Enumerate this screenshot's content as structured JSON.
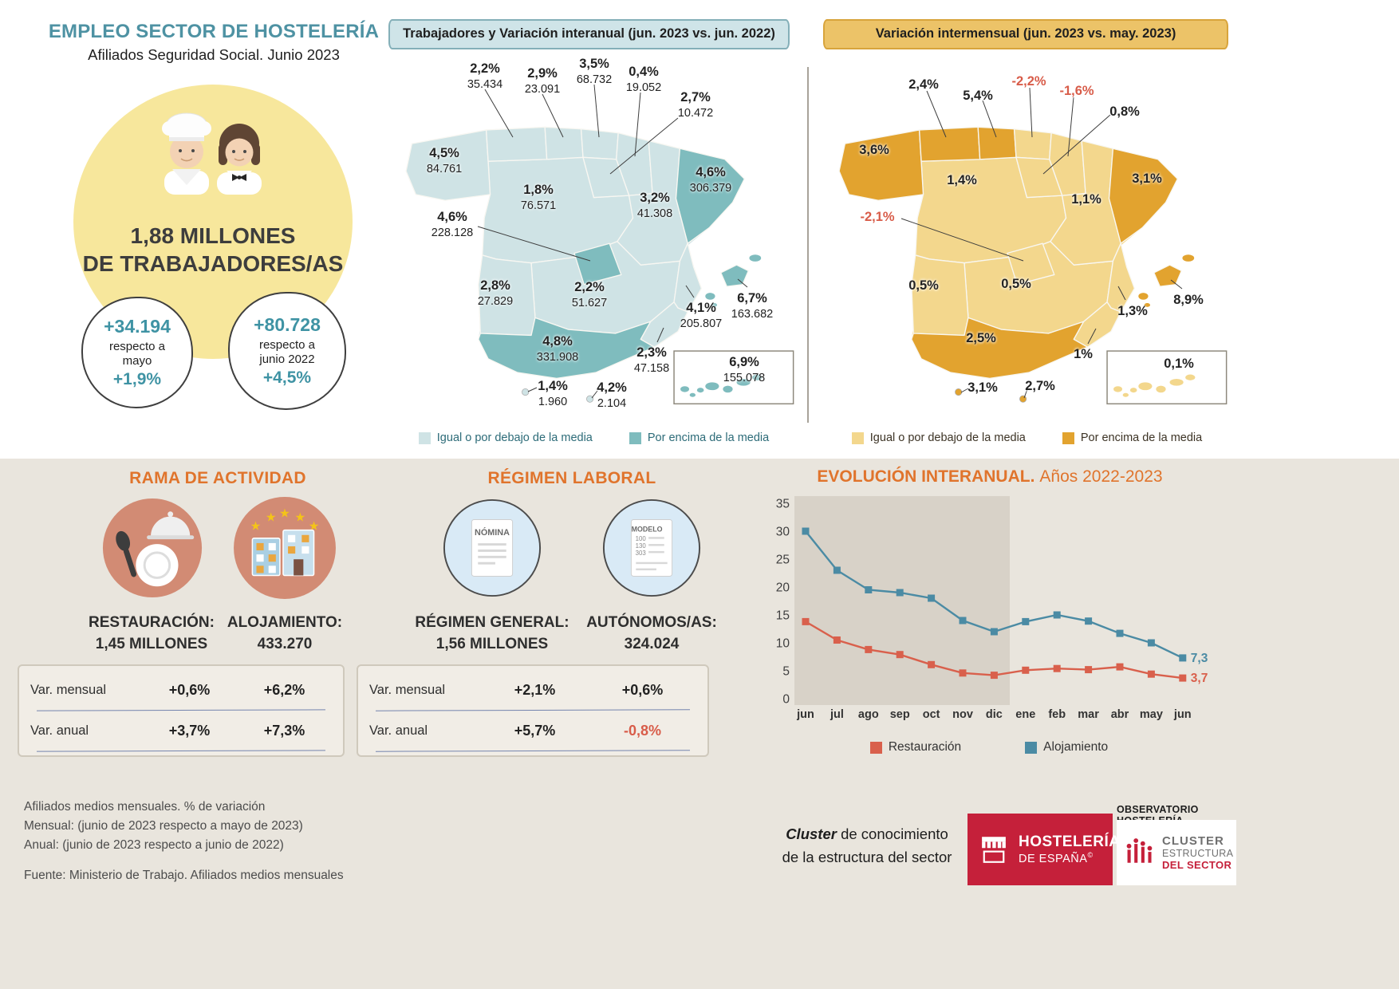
{
  "header": {
    "title": "EMPLEO SECTOR DE HOSTELERÍA",
    "subtitle": "Afiliados Seguridad Social. Junio 2023",
    "total_line1": "1,88 MILLONES",
    "total_line2": "DE TRABAJADORES/AS",
    "badge_month": {
      "value": "+34.194",
      "label_line1": "respecto a",
      "label_line2": "mayo",
      "pct": "+1,9%"
    },
    "badge_year": {
      "value": "+80.728",
      "label_line1": "respecto a",
      "label_line2": "junio 2022",
      "pct": "+4,5%"
    }
  },
  "chart_data": [
    {
      "type": "line",
      "title": "EVOLUCIÓN INTERANUAL.",
      "subtitle": "Años 2022-2023",
      "categories": [
        "jun",
        "jul",
        "ago",
        "sep",
        "oct",
        "nov",
        "dic",
        "ene",
        "feb",
        "mar",
        "abr",
        "may",
        "jun"
      ],
      "series": [
        {
          "name": "Restauración",
          "color": "#d9604c",
          "values": [
            13.8,
            10.5,
            8.8,
            7.9,
            6.1,
            4.6,
            4.2,
            5.1,
            5.4,
            5.2,
            5.7,
            4.4,
            3.7
          ],
          "end_label": "3,7"
        },
        {
          "name": "Alojamiento",
          "color": "#4b8ba4",
          "values": [
            30,
            23,
            19.5,
            19,
            18,
            14,
            12,
            13.8,
            15,
            13.9,
            11.7,
            10,
            7.3
          ],
          "end_label": "7,3"
        }
      ],
      "ylim": [
        0,
        35
      ],
      "yticks": [
        0,
        5,
        10,
        15,
        20,
        25,
        30,
        35
      ],
      "shaded_categories": [
        "jun",
        "dic"
      ],
      "legend_position": "bottom",
      "grid": false,
      "marker": "square"
    },
    {
      "type": "choropleth",
      "title": "Trabajadores y Variación interanual (jun. 2023 vs. jun. 2022)",
      "value_format": "percent_and_count",
      "palette": {
        "below": "#cfe3e5",
        "above": "#7fbcbe"
      },
      "legend": [
        {
          "label": "Igual o por debajo de la media",
          "key": "below"
        },
        {
          "label": "Por encima de la media",
          "key": "above"
        }
      ],
      "regions": [
        {
          "id": "galicia",
          "pct": "4,5%",
          "count": "84.761",
          "above": false
        },
        {
          "id": "asturias",
          "pct": "2,2%",
          "count": "35.434",
          "above": false
        },
        {
          "id": "cantabria",
          "pct": "2,9%",
          "count": "23.091",
          "above": false
        },
        {
          "id": "paisvasco",
          "pct": "3,5%",
          "count": "68.732",
          "above": false
        },
        {
          "id": "navarra",
          "pct": "0,4%",
          "count": "19.052",
          "above": false
        },
        {
          "id": "larioja",
          "pct": "2,7%",
          "count": "10.472",
          "above": false
        },
        {
          "id": "castillayleon",
          "pct": "1,8%",
          "count": "76.571",
          "above": false
        },
        {
          "id": "aragon",
          "pct": "3,2%",
          "count": "41.308",
          "above": false
        },
        {
          "id": "cataluna",
          "pct": "4,6%",
          "count": "306.379",
          "above": true
        },
        {
          "id": "madrid",
          "pct": "4,6%",
          "count": "228.128",
          "above": true
        },
        {
          "id": "extremadura",
          "pct": "2,8%",
          "count": "27.829",
          "above": false
        },
        {
          "id": "castillalamancha",
          "pct": "2,2%",
          "count": "51.627",
          "above": false
        },
        {
          "id": "valencia",
          "pct": "4,1%",
          "count": "205.807",
          "above": false
        },
        {
          "id": "murcia",
          "pct": "2,3%",
          "count": "47.158",
          "above": false
        },
        {
          "id": "andalucia",
          "pct": "4,8%",
          "count": "331.908",
          "above": true
        },
        {
          "id": "baleares",
          "pct": "6,7%",
          "count": "163.682",
          "above": true
        },
        {
          "id": "canarias",
          "pct": "6,9%",
          "count": "155.078",
          "above": true
        },
        {
          "id": "ceuta",
          "pct": "1,4%",
          "count": "1.960",
          "above": false
        },
        {
          "id": "melilla",
          "pct": "4,2%",
          "count": "2.104",
          "above": false
        }
      ]
    },
    {
      "type": "choropleth",
      "title": "Variación intermensual (jun. 2023 vs. may. 2023)",
      "value_format": "percent",
      "palette": {
        "below": "#f3d78d",
        "above": "#e2a32f"
      },
      "negative_color": "#d85c49",
      "legend": [
        {
          "label": "Igual o por debajo de la media",
          "key": "below"
        },
        {
          "label": "Por encima de la media",
          "key": "above"
        }
      ],
      "regions": [
        {
          "id": "galicia",
          "pct": "3,6%",
          "above": true
        },
        {
          "id": "asturias",
          "pct": "2,4%",
          "above": true
        },
        {
          "id": "cantabria",
          "pct": "5,4%",
          "above": true
        },
        {
          "id": "paisvasco",
          "pct": "-2,2%",
          "above": false,
          "negative": true
        },
        {
          "id": "navarra",
          "pct": "-1,6%",
          "above": false,
          "negative": true
        },
        {
          "id": "larioja",
          "pct": "0,8%",
          "above": false
        },
        {
          "id": "castillayleon",
          "pct": "1,4%",
          "above": false
        },
        {
          "id": "aragon",
          "pct": "1,1%",
          "above": false
        },
        {
          "id": "cataluna",
          "pct": "3,1%",
          "above": true
        },
        {
          "id": "madrid",
          "pct": "-2,1%",
          "above": false,
          "negative": true
        },
        {
          "id": "extremadura",
          "pct": "0,5%",
          "above": false
        },
        {
          "id": "castillalamancha",
          "pct": "0,5%",
          "above": false
        },
        {
          "id": "valencia",
          "pct": "1,3%",
          "above": false
        },
        {
          "id": "murcia",
          "pct": "1%",
          "above": false
        },
        {
          "id": "andalucia",
          "pct": "2,5%",
          "above": true
        },
        {
          "id": "baleares",
          "pct": "8,9%",
          "above": true
        },
        {
          "id": "canarias",
          "pct": "0,1%",
          "above": false
        },
        {
          "id": "ceuta",
          "pct": "3,1%",
          "above": true
        },
        {
          "id": "melilla",
          "pct": "2,7%",
          "above": true
        }
      ]
    }
  ],
  "rama": {
    "title": "RAMA DE ACTIVIDAD",
    "col1": {
      "name": "RESTAURACIÓN:",
      "value": "1,45 MILLONES"
    },
    "col2": {
      "name": "ALOJAMIENTO:",
      "value": "433.270"
    },
    "rows": [
      {
        "label": "Var. mensual",
        "v1": "+0,6%",
        "v2": "+6,2%"
      },
      {
        "label": "Var. anual",
        "v1": "+3,7%",
        "v2": "+7,3%"
      }
    ]
  },
  "regimen": {
    "title": "RÉGIMEN LABORAL",
    "col1": {
      "name": "RÉGIMEN GENERAL:",
      "value": "1,56 MILLONES"
    },
    "col2": {
      "name": "AUTÓNOMOS/AS:",
      "value": "324.024"
    },
    "rows": [
      {
        "label": "Var. mensual",
        "v1": "+2,1%",
        "v2": "+0,6%"
      },
      {
        "label": "Var. anual",
        "v1": "+5,7%",
        "v2": "-0,8%"
      }
    ],
    "icon1_label": "NÓMINA",
    "icon2_label": "MODELO",
    "icon2_numbers": [
      "100",
      "130",
      "303"
    ]
  },
  "footnotes": {
    "line1": "Afiliados medios mensuales. % de variación",
    "line2": "Mensual: (junio de 2023 respecto a mayo de 2023)",
    "line3": "Anual: (junio de 2023 respecto a junio de 2022)",
    "source": "Fuente: Ministerio de Trabajo. Afiliados medios mensuales"
  },
  "branding": {
    "tagline_italic": "Cluster",
    "tagline_rest": " de conocimiento",
    "tagline_line2": "de la estructura del sector",
    "logo_hosteleria_line1": "HOSTELERÍA",
    "logo_hosteleria_line2": "DE ESPAÑA",
    "logo_hosteleria_mark": "©",
    "observatorio_header": "OBSERVATORIO HOSTELERÍA",
    "cluster_logo_line1": "CLUSTER",
    "cluster_logo_line2": "ESTRUCTURA",
    "cluster_logo_line3": "DEL SECTOR"
  }
}
